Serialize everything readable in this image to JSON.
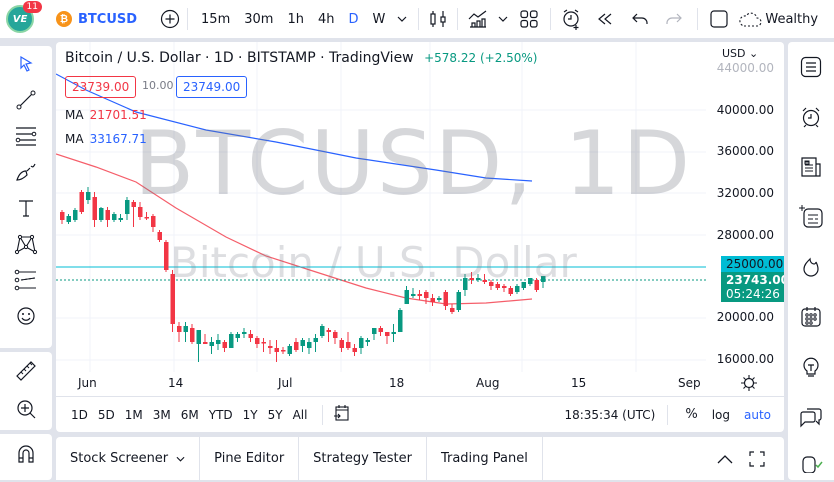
{
  "topbar": {
    "logo_badge": "11",
    "logo_text": "VE",
    "symbol": "BTCUSD",
    "timeframes": [
      "15m",
      "30m",
      "1h",
      "4h",
      "D",
      "W"
    ],
    "active_timeframe": "D",
    "layout_name": "Wealthy"
  },
  "legend": {
    "title": "Bitcoin / U.S. Dollar · 1D · BITSTAMP · TradingView",
    "change": "+578.22 (+2.50%)",
    "bid": "23739.00",
    "spread": "10.00",
    "ask": "23749.00",
    "ma1_label": "MA",
    "ma1_value": "21701.51",
    "ma2_label": "MA",
    "ma2_value": "33167.71"
  },
  "watermark": {
    "line1": "BTCUSD, 1D",
    "line2": "Bitcoin / U.S. Dollar"
  },
  "price_axis": {
    "currency": "USD",
    "labels": [
      "44000.00",
      "40000.00",
      "36000.00",
      "32000.00",
      "28000.00",
      "20000.00",
      "16000.00"
    ],
    "alert_label": "25000.00",
    "last_price": "23743.00",
    "countdown": "05:24:26"
  },
  "time_axis": {
    "labels": [
      "Jun",
      "14",
      "Jul",
      "18",
      "Aug",
      "15",
      "Sep"
    ]
  },
  "bottom_toolbar": {
    "ranges": [
      "1D",
      "5D",
      "1M",
      "3M",
      "6M",
      "YTD",
      "1Y",
      "5Y",
      "All"
    ],
    "clock": "18:35:34 (UTC)",
    "percent": "%",
    "log": "log",
    "auto": "auto"
  },
  "bottom_panel": {
    "tabs": [
      "Stock Screener",
      "Pine Editor",
      "Strategy Tester",
      "Trading Panel"
    ]
  },
  "colors": {
    "up": "#089981",
    "down": "#f23645",
    "accent": "#2962ff",
    "ma_fast": "#f23645",
    "ma_slow": "#2962ff",
    "alert_line": "#00bcd4"
  }
}
